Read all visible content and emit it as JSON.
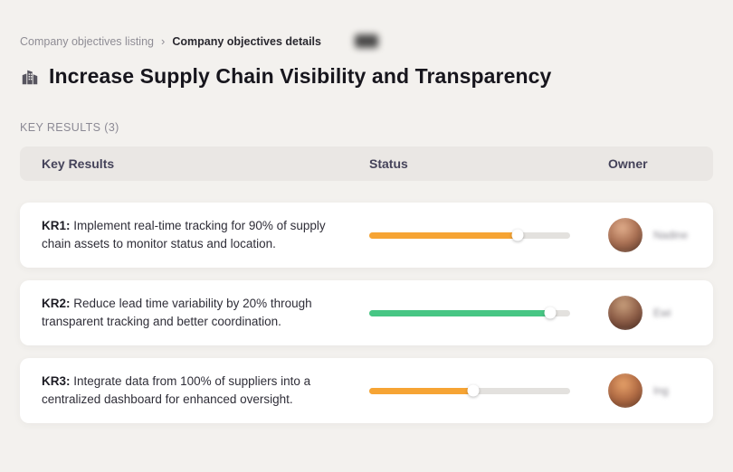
{
  "breadcrumb": {
    "parent": "Company objectives listing",
    "separator": "›",
    "current": "Company objectives details"
  },
  "page": {
    "title": "Increase Supply Chain Visibility and Transparency",
    "section_label": "KEY RESULTS (3)"
  },
  "table": {
    "headers": [
      "Key Results",
      "Status",
      "Owner"
    ]
  },
  "colors": {
    "orange": "#F6A434",
    "green": "#47C684",
    "track": "#e3e1de"
  },
  "rows": [
    {
      "kr_label": "KR1:",
      "text": "Implement real-time tracking for 90% of supply chain assets to monitor status and location.",
      "progress": 74,
      "color": "#F6A434",
      "owner": "Nadine"
    },
    {
      "kr_label": "KR2:",
      "text": "Reduce lead time variability by 20% through transparent tracking and better coordination.",
      "progress": 90,
      "color": "#47C684",
      "owner": "Ewi"
    },
    {
      "kr_label": "KR3:",
      "text": "Integrate data from 100% of suppliers into a centralized dashboard for enhanced oversight.",
      "progress": 52,
      "color": "#F6A434",
      "owner": "Ing"
    }
  ]
}
